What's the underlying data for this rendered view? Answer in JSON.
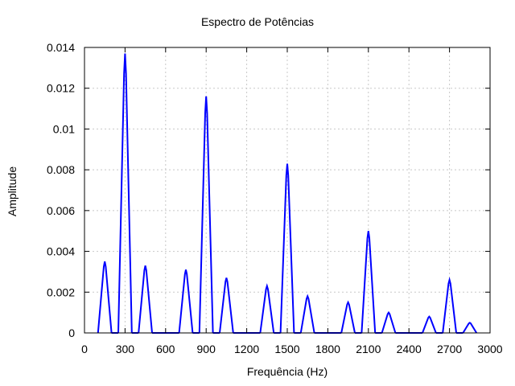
{
  "chart_data": {
    "type": "line",
    "title": "Espectro de Potências",
    "xlabel": "Frequência (Hz)",
    "ylabel": "Amplitude",
    "xlim": [
      0,
      3000
    ],
    "ylim": [
      0,
      0.014
    ],
    "grid": true,
    "line_color": "#0000ff",
    "x_ticks": [
      0,
      300,
      600,
      900,
      1200,
      1500,
      1800,
      2100,
      2400,
      2700,
      3000
    ],
    "x_tick_labels": [
      "0",
      "300",
      "600",
      "900",
      "1200",
      "1500",
      "1800",
      "2100",
      "2400",
      "2700",
      "3000"
    ],
    "y_ticks": [
      0,
      0.002,
      0.004,
      0.006,
      0.008,
      0.01,
      0.012,
      0.014
    ],
    "y_tick_labels": [
      "0",
      "0.002",
      "0.004",
      "0.006",
      "0.008",
      "0.01",
      "0.012",
      "0.014"
    ],
    "peaks": [
      {
        "x": 150,
        "y": 0.0035
      },
      {
        "x": 300,
        "y": 0.0137
      },
      {
        "x": 450,
        "y": 0.0033
      },
      {
        "x": 750,
        "y": 0.0031
      },
      {
        "x": 900,
        "y": 0.0116
      },
      {
        "x": 1050,
        "y": 0.0027
      },
      {
        "x": 1350,
        "y": 0.0023
      },
      {
        "x": 1500,
        "y": 0.0083
      },
      {
        "x": 1650,
        "y": 0.0018
      },
      {
        "x": 1950,
        "y": 0.0015
      },
      {
        "x": 2100,
        "y": 0.005
      },
      {
        "x": 2250,
        "y": 0.001
      },
      {
        "x": 2550,
        "y": 0.0008
      },
      {
        "x": 2700,
        "y": 0.0026
      },
      {
        "x": 2850,
        "y": 0.0005
      }
    ]
  }
}
